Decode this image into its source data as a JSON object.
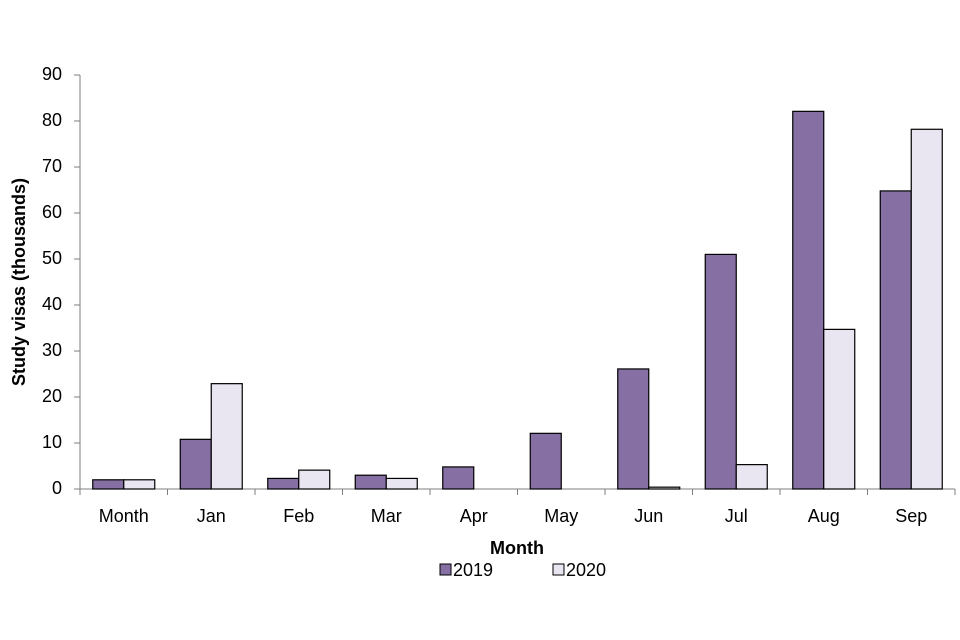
{
  "chart_data": {
    "type": "bar",
    "x_label": "Month",
    "y_label": "Study visas (thousands)",
    "categories": [
      "Month",
      "Jan",
      "Feb",
      "Mar",
      "Apr",
      "May",
      "Jun",
      "Jul",
      "Aug",
      "Sep"
    ],
    "series": [
      {
        "name": "2019",
        "color": "#8670a3",
        "values": [
          2,
          10.8,
          2.3,
          3,
          4.8,
          12.1,
          26.1,
          51,
          82.1,
          64.8
        ]
      },
      {
        "name": "2020",
        "color": "#e9e6f1",
        "values": [
          2,
          22.9,
          4.1,
          2.3,
          0,
          0,
          0.4,
          5.3,
          34.7,
          78.2
        ]
      }
    ],
    "ylim": [
      0,
      90
    ],
    "yticks": [
      0,
      10,
      20,
      30,
      40,
      50,
      60,
      70,
      80,
      90
    ],
    "grid": false,
    "legend": "bottom"
  }
}
